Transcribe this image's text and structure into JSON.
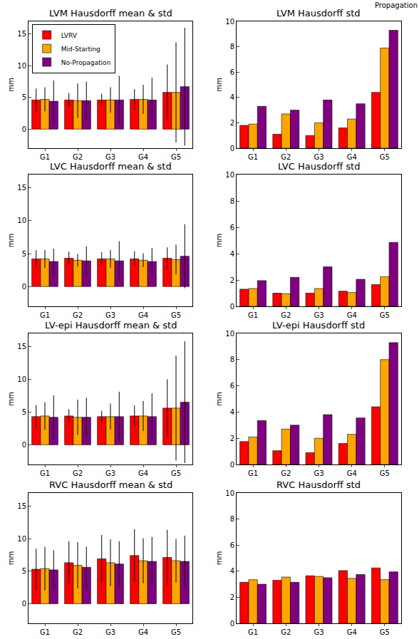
{
  "header": "Propagation",
  "chart_data": [
    {
      "type": "bar",
      "title": "LVM Hausdorff mean & std",
      "y_label": "mm",
      "categories": [
        "G1",
        "G2",
        "G3",
        "G4",
        "G5"
      ],
      "ylim": [
        -3,
        17
      ],
      "yticks": [
        0,
        5,
        10,
        15
      ],
      "legend": "upper left",
      "series": [
        {
          "name": "LVRV",
          "color": "#ff0000",
          "values": [
            4.6,
            4.6,
            4.6,
            4.7,
            5.8
          ],
          "error": [
            1.8,
            1.1,
            1.0,
            1.6,
            4.4
          ]
        },
        {
          "name": "Mid-Starting",
          "color": "#ffa500",
          "values": [
            4.7,
            4.5,
            4.6,
            4.7,
            5.8
          ],
          "error": [
            1.9,
            2.7,
            2.0,
            2.3,
            7.9
          ]
        },
        {
          "name": "No-Propagation",
          "color": "#800080",
          "values": [
            4.4,
            4.5,
            4.6,
            4.6,
            6.7
          ],
          "error": [
            3.3,
            3.0,
            3.8,
            3.5,
            9.3
          ]
        }
      ]
    },
    {
      "type": "bar",
      "title": "LVM Hausdorff std",
      "y_label": "mm",
      "categories": [
        "G1",
        "G2",
        "G3",
        "G4",
        "G5"
      ],
      "ylim": [
        0,
        10
      ],
      "yticks": [
        0,
        2,
        4,
        6,
        8,
        10
      ],
      "series": [
        {
          "name": "LVRV",
          "color": "#ff0000",
          "values": [
            1.8,
            1.1,
            1.0,
            1.6,
            4.4
          ]
        },
        {
          "name": "Mid-Starting",
          "color": "#ffa500",
          "values": [
            1.9,
            2.7,
            2.0,
            2.3,
            7.9
          ]
        },
        {
          "name": "No-Propagation",
          "color": "#800080",
          "values": [
            3.3,
            3.0,
            3.8,
            3.5,
            9.3
          ]
        }
      ]
    },
    {
      "type": "bar",
      "title": "LVC Hausdorff mean & std",
      "y_label": "mm",
      "categories": [
        "G1",
        "G2",
        "G3",
        "G4",
        "G5"
      ],
      "ylim": [
        -3,
        17
      ],
      "yticks": [
        0,
        5,
        10,
        15
      ],
      "series": [
        {
          "name": "LVRV",
          "color": "#ff0000",
          "values": [
            4.2,
            4.3,
            4.2,
            4.2,
            4.3
          ],
          "error": [
            1.3,
            1.0,
            1.0,
            1.15,
            1.65
          ]
        },
        {
          "name": "Mid-Starting",
          "color": "#ffa500",
          "values": [
            4.2,
            4.0,
            4.2,
            4.0,
            4.1
          ],
          "error": [
            1.35,
            0.95,
            1.35,
            1.05,
            2.25
          ]
        },
        {
          "name": "No-Propagation",
          "color": "#800080",
          "values": [
            3.8,
            3.9,
            3.9,
            3.8,
            4.6
          ],
          "error": [
            1.95,
            2.2,
            3.0,
            2.05,
            4.85
          ]
        }
      ]
    },
    {
      "type": "bar",
      "title": "LVC Hausdorff std",
      "y_label": "mm",
      "categories": [
        "G1",
        "G2",
        "G3",
        "G4",
        "G5"
      ],
      "ylim": [
        0,
        10
      ],
      "yticks": [
        0,
        2,
        4,
        6,
        8,
        10
      ],
      "series": [
        {
          "name": "LVRV",
          "color": "#ff0000",
          "values": [
            1.3,
            1.0,
            1.0,
            1.15,
            1.65
          ]
        },
        {
          "name": "Mid-Starting",
          "color": "#ffa500",
          "values": [
            1.35,
            0.95,
            1.35,
            1.05,
            2.25
          ]
        },
        {
          "name": "No-Propagation",
          "color": "#800080",
          "values": [
            1.95,
            2.2,
            3.0,
            2.05,
            4.85
          ]
        }
      ]
    },
    {
      "type": "bar",
      "title": "LV-epi Hausdorff mean & std",
      "y_label": "mm",
      "categories": [
        "G1",
        "G2",
        "G3",
        "G4",
        "G5"
      ],
      "ylim": [
        -3,
        17
      ],
      "yticks": [
        0,
        5,
        10,
        15
      ],
      "series": [
        {
          "name": "LVRV",
          "color": "#ff0000",
          "values": [
            4.3,
            4.4,
            4.3,
            4.4,
            5.6
          ],
          "error": [
            1.75,
            1.05,
            0.9,
            1.6,
            4.4
          ]
        },
        {
          "name": "Mid-Starting",
          "color": "#ffa500",
          "values": [
            4.4,
            4.2,
            4.3,
            4.4,
            5.6
          ],
          "error": [
            2.1,
            2.7,
            2.0,
            2.3,
            8.0
          ]
        },
        {
          "name": "No-Propagation",
          "color": "#800080",
          "values": [
            4.2,
            4.2,
            4.3,
            4.3,
            6.5
          ],
          "error": [
            3.35,
            3.0,
            3.8,
            3.55,
            9.3
          ]
        }
      ]
    },
    {
      "type": "bar",
      "title": "LV-epi Hausdorff std",
      "y_label": "mm",
      "categories": [
        "G1",
        "G2",
        "G3",
        "G4",
        "G5"
      ],
      "ylim": [
        0,
        10
      ],
      "yticks": [
        0,
        2,
        4,
        6,
        8,
        10
      ],
      "series": [
        {
          "name": "LVRV",
          "color": "#ff0000",
          "values": [
            1.75,
            1.05,
            0.9,
            1.6,
            4.4
          ]
        },
        {
          "name": "Mid-Starting",
          "color": "#ffa500",
          "values": [
            2.1,
            2.7,
            2.0,
            2.3,
            8.0
          ]
        },
        {
          "name": "No-Propagation",
          "color": "#800080",
          "values": [
            3.35,
            3.0,
            3.8,
            3.55,
            9.3
          ]
        }
      ]
    },
    {
      "type": "bar",
      "title": "RVC Hausdorff mean & std",
      "y_label": "mm",
      "categories": [
        "G1",
        "G2",
        "G3",
        "G4",
        "G5"
      ],
      "ylim": [
        -3,
        17
      ],
      "yticks": [
        0,
        5,
        10,
        15
      ],
      "series": [
        {
          "name": "LVRV",
          "color": "#ff0000",
          "values": [
            5.3,
            6.3,
            6.9,
            7.4,
            7.1
          ],
          "error": [
            3.15,
            3.3,
            3.65,
            4.05,
            4.25
          ]
        },
        {
          "name": "Mid-Starting",
          "color": "#ffa500",
          "values": [
            5.4,
            5.9,
            6.3,
            6.6,
            6.6
          ],
          "error": [
            3.35,
            3.55,
            3.6,
            3.45,
            3.35
          ]
        },
        {
          "name": "No-Propagation",
          "color": "#800080",
          "values": [
            5.2,
            5.6,
            6.1,
            6.5,
            6.5
          ],
          "error": [
            3.0,
            3.15,
            3.5,
            3.75,
            3.95
          ]
        }
      ]
    },
    {
      "type": "bar",
      "title": "RVC Hausdorff std",
      "y_label": "mm",
      "categories": [
        "G1",
        "G2",
        "G3",
        "G4",
        "G5"
      ],
      "ylim": [
        0,
        10
      ],
      "yticks": [
        0,
        2,
        4,
        6,
        8,
        10
      ],
      "series": [
        {
          "name": "LVRV",
          "color": "#ff0000",
          "values": [
            3.15,
            3.3,
            3.65,
            4.05,
            4.25
          ]
        },
        {
          "name": "Mid-Starting",
          "color": "#ffa500",
          "values": [
            3.35,
            3.55,
            3.6,
            3.45,
            3.35
          ]
        },
        {
          "name": "No-Propagation",
          "color": "#800080",
          "values": [
            3.0,
            3.15,
            3.5,
            3.75,
            3.95
          ]
        }
      ]
    }
  ]
}
